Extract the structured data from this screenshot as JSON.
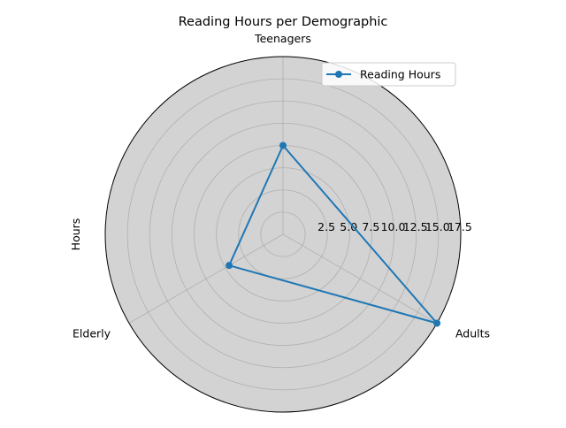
{
  "chart_data": {
    "type": "radar",
    "title": "Reading Hours per Demographic",
    "ylabel": "Hours",
    "categories": [
      "Teenagers",
      "Adults",
      "Elderly"
    ],
    "series": [
      {
        "name": "Reading Hours",
        "values": [
          10,
          20,
          7
        ],
        "color": "#1f77b4"
      }
    ],
    "r_ticks": [
      2.5,
      5.0,
      7.5,
      10.0,
      12.5,
      15.0,
      17.5
    ],
    "r_tick_labels": [
      "2.5",
      "5.0",
      "7.5",
      "10.0",
      "12.5",
      "15.0",
      "17.5"
    ],
    "rlim": [
      0,
      20
    ],
    "grid": true,
    "legend_position": "top-right",
    "background_color": "#d3d3d3",
    "grid_color": "#b0b0b0"
  }
}
